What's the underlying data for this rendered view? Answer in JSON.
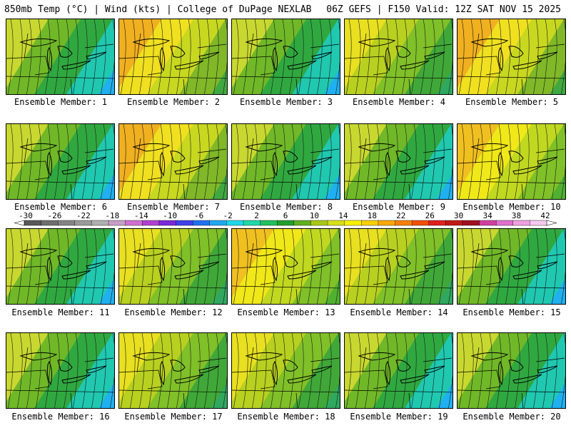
{
  "header": {
    "left": "850mb Temp (°C) | Wind (kts) | College of DuPage NEXLAB",
    "right": "06Z GEFS | F150 Valid: 12Z SAT NOV 15 2025"
  },
  "colorbar": {
    "ticks": [
      "-30",
      "-26",
      "-22",
      "-18",
      "-14",
      "-10",
      "-6",
      "-2",
      "2",
      "6",
      "10",
      "14",
      "18",
      "22",
      "26",
      "30",
      "34",
      "38",
      "42"
    ],
    "colors": [
      "#585858",
      "#6e6e6e",
      "#848484",
      "#9a9a9a",
      "#b0b0b0",
      "#c89ec8",
      "#d070d0",
      "#b040d0",
      "#7a28d8",
      "#4040e8",
      "#2070f0",
      "#20a8f0",
      "#20d8e8",
      "#20d8a8",
      "#20c060",
      "#20a030",
      "#60b020",
      "#a8c818",
      "#d8e018",
      "#f8f000",
      "#f8d000",
      "#f8a800",
      "#f88000",
      "#f05000",
      "#e02020",
      "#c01818",
      "#a01020",
      "#d040a0",
      "#e070d0",
      "#f0a0e0",
      "#f8c8f0"
    ]
  },
  "panels": [
    {
      "label": "Ensemble Member: 1",
      "palette": "cold-east"
    },
    {
      "label": "Ensemble Member: 2",
      "palette": "warm-sw"
    },
    {
      "label": "Ensemble Member: 3",
      "palette": "cold-east"
    },
    {
      "label": "Ensemble Member: 4",
      "palette": "mild"
    },
    {
      "label": "Ensemble Member: 5",
      "palette": "warm-sw"
    },
    {
      "label": "Ensemble Member: 6",
      "palette": "cold-east"
    },
    {
      "label": "Ensemble Member: 7",
      "palette": "warm-sw"
    },
    {
      "label": "Ensemble Member: 8",
      "palette": "cold-east"
    },
    {
      "label": "Ensemble Member: 9",
      "palette": "cold-east"
    },
    {
      "label": "Ensemble Member: 10",
      "palette": "warm-all"
    },
    {
      "label": "Ensemble Member: 11",
      "palette": "cold-east"
    },
    {
      "label": "Ensemble Member: 12",
      "palette": "mild"
    },
    {
      "label": "Ensemble Member: 13",
      "palette": "warm-all"
    },
    {
      "label": "Ensemble Member: 14",
      "palette": "mild"
    },
    {
      "label": "Ensemble Member: 15",
      "palette": "cold-east"
    },
    {
      "label": "Ensemble Member: 16",
      "palette": "cold-east"
    },
    {
      "label": "Ensemble Member: 17",
      "palette": "mild"
    },
    {
      "label": "Ensemble Member: 18",
      "palette": "mild"
    },
    {
      "label": "Ensemble Member: 19",
      "palette": "cold-east"
    },
    {
      "label": "Ensemble Member: 20",
      "palette": "cold-east"
    }
  ]
}
